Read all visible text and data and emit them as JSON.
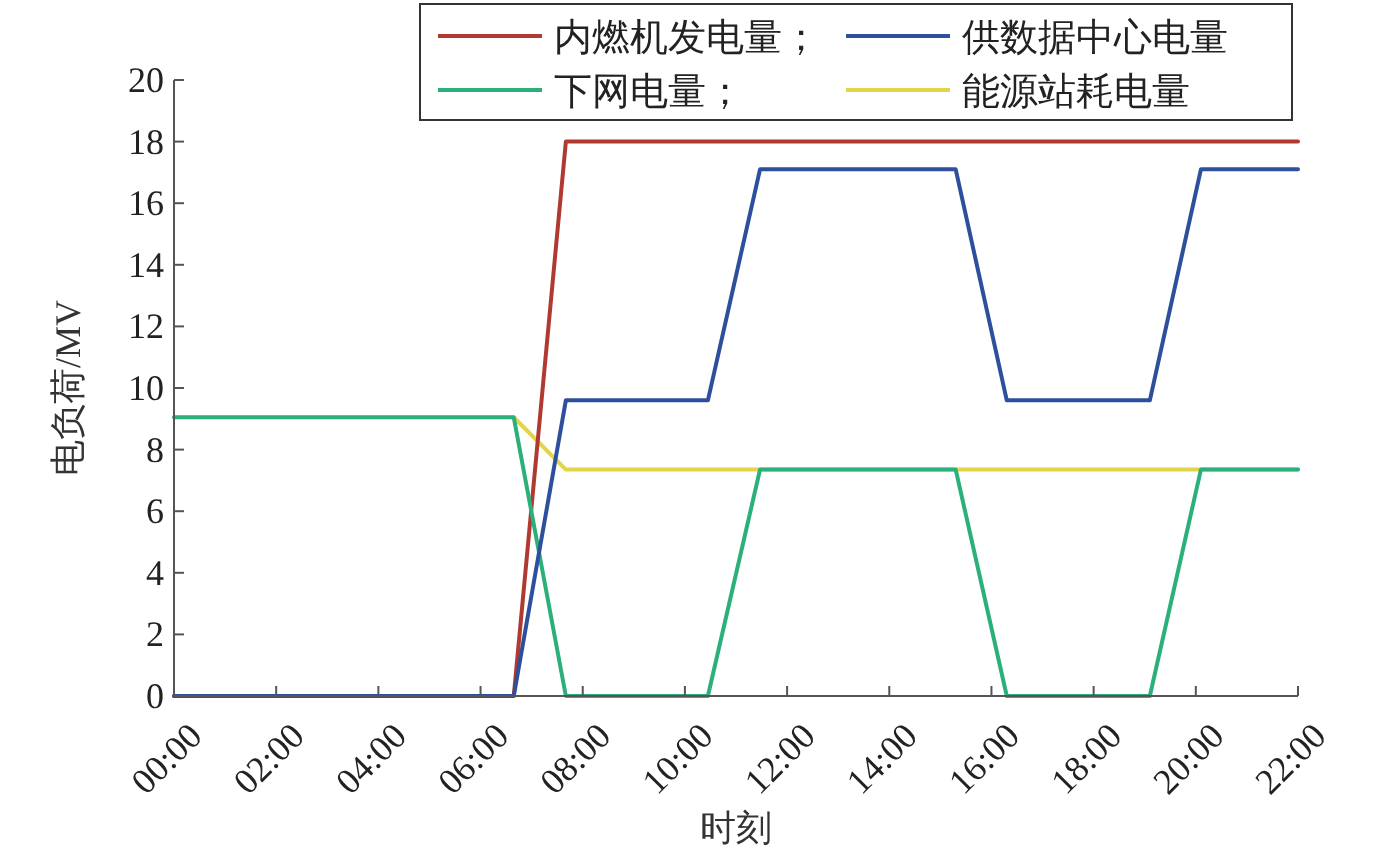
{
  "chart_data": {
    "type": "line",
    "xlabel": "时刻",
    "ylabel": "电负荷/MV",
    "xlim": [
      0,
      22
    ],
    "ylim": [
      0,
      20
    ],
    "xticks": [
      {
        "value": 0,
        "label": "00:00"
      },
      {
        "value": 2,
        "label": "02:00"
      },
      {
        "value": 4,
        "label": "04:00"
      },
      {
        "value": 6,
        "label": "06:00"
      },
      {
        "value": 8,
        "label": "08:00"
      },
      {
        "value": 10,
        "label": "10:00"
      },
      {
        "value": 12,
        "label": "12:00"
      },
      {
        "value": 14,
        "label": "14:00"
      },
      {
        "value": 16,
        "label": "16:00"
      },
      {
        "value": 18,
        "label": "18:00"
      },
      {
        "value": 20,
        "label": "20:00"
      },
      {
        "value": 22,
        "label": "22:00"
      }
    ],
    "yticks": [
      0,
      2,
      4,
      6,
      8,
      10,
      12,
      14,
      16,
      18,
      20
    ],
    "grid": false,
    "legend": "top",
    "marker": "none",
    "line_style": "solid",
    "series": [
      {
        "name": "内燃机发电量；",
        "color": "#b03a32",
        "x": [
          0,
          6.65,
          7.67,
          22
        ],
        "values": [
          0,
          0,
          18,
          18
        ]
      },
      {
        "name": "供数据中心电量",
        "color": "#2e4f9c",
        "x": [
          0,
          6.65,
          7.67,
          10.45,
          11.47,
          15.3,
          16.3,
          19.1,
          20.1,
          22
        ],
        "values": [
          0,
          0,
          9.6,
          9.6,
          17.1,
          17.1,
          9.6,
          9.6,
          17.1,
          17.1
        ]
      },
      {
        "name": "下网电量；",
        "color": "#2bb07a",
        "x": [
          0,
          6.65,
          7.67,
          10.45,
          11.47,
          15.3,
          16.3,
          19.1,
          20.1,
          22
        ],
        "values": [
          9.05,
          9.05,
          0,
          0,
          7.35,
          7.35,
          0,
          0,
          7.35,
          7.35
        ]
      },
      {
        "name": "能源站耗电量",
        "color": "#e3d44a",
        "x": [
          6.65,
          7.67,
          22
        ],
        "values": [
          9.05,
          7.35,
          7.35
        ]
      }
    ]
  }
}
